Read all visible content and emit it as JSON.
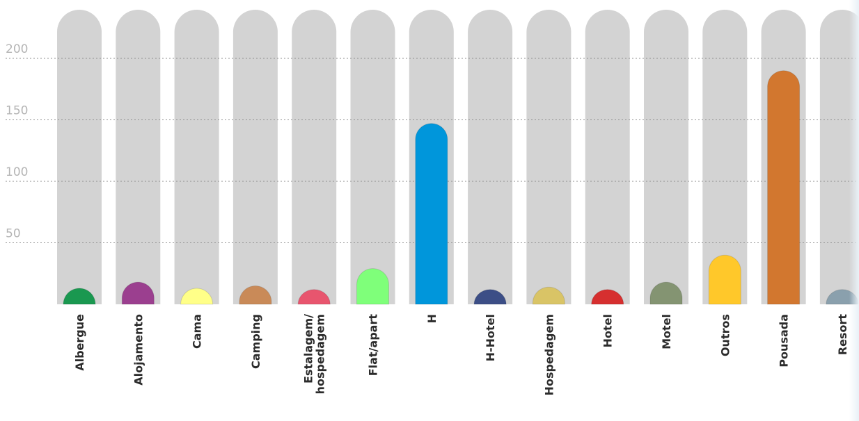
{
  "chart_data": {
    "type": "bar",
    "categories": [
      "Albergue",
      "Alojamento",
      "Cama",
      "Camping",
      "Estalagem/ hospedagem",
      "Flat/apart",
      "H",
      "H-Hotel",
      "Hospedagem",
      "Hotel",
      "Motel",
      "Outros",
      "Pousada",
      "Resort"
    ],
    "values": [
      13,
      18,
      13,
      15,
      12,
      29,
      147,
      12,
      14,
      12,
      18,
      40,
      190,
      12
    ],
    "colors": [
      "#1a9850",
      "#9b3f8f",
      "#ffff88",
      "#c98a58",
      "#e8556e",
      "#7fff7a",
      "#0096db",
      "#3c4e86",
      "#d9c466",
      "#d62f2f",
      "#849472",
      "#ffc82a",
      "#d2772f",
      "#8aa0ad"
    ],
    "track_color": "#d3d3d3",
    "ylim": [
      0,
      240
    ],
    "yticks": [
      50,
      100,
      150,
      200
    ],
    "ytick_labels": [
      "50",
      "100",
      "150",
      "200"
    ],
    "grid": true,
    "legend": "none",
    "title": "",
    "xlabel": "",
    "ylabel": ""
  }
}
